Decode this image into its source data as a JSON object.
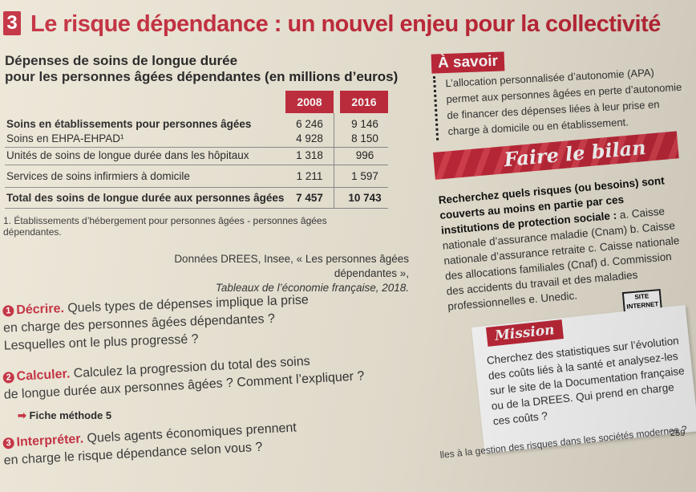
{
  "header": {
    "number": "3",
    "title": "Le risque dépendance : un nouvel enjeu pour la collectivité"
  },
  "table_title": {
    "line1": "Dépenses de soins de longue durée",
    "line2": "pour les personnes âgées dépendantes (en millions d’euros)"
  },
  "table": {
    "years": [
      "2008",
      "2016"
    ],
    "rows": [
      {
        "label": "Soins en établissements pour personnes âgées",
        "v2008": "6 246",
        "v2016": "9 146"
      },
      {
        "label": "Soins en EHPA-EHPAD¹",
        "v2008": "4 928",
        "v2016": "8 150"
      },
      {
        "label": "Unités de soins de longue durée dans les hôpitaux",
        "v2008": "1 318",
        "v2016": "996"
      },
      {
        "label": "Services de soins infirmiers à domicile",
        "v2008": "1 211",
        "v2016": "1 597"
      },
      {
        "label": "Total des soins de longue durée aux personnes âgées",
        "v2008": "7 457",
        "v2016": "10 743"
      }
    ]
  },
  "note": "1. Établissements d’hébergement pour personnes âgées - personnes âgées dépendantes.",
  "source": {
    "line1": "Données DREES, Insee, « Les personnes âgées dépendantes »,",
    "line2": "Tableaux de l’économie française, 2018."
  },
  "questions": [
    {
      "num": "1",
      "kw": "Décrire.",
      "text": "Quels types de dépenses implique la prise",
      "l2": "en charge des personnes âgées dépendantes ?",
      "l3": "Lesquelles ont le plus progressé ?"
    },
    {
      "num": "2",
      "kw": "Calculer.",
      "text": "Calculez la progression du total des soins",
      "l2": "de longue durée aux personnes âgées ? Comment l’expliquer ?"
    },
    {
      "num": "3",
      "kw": "Interpréter.",
      "text": "Quels agents économiques prennent",
      "l2": "en charge le risque dépendance selon vous ?"
    }
  ],
  "fiche": "Fiche méthode 5",
  "savoir": {
    "tag": "À savoir",
    "text": "L’allocation personnalisée d’autonomie (APA) permet aux personnes âgées en perte d’autonomie de financer des dépenses liées à leur prise en charge à domicile ou en établissement."
  },
  "bilan": {
    "tag": "Faire le bilan",
    "bold": "Recherchez quels risques (ou besoins) sont couverts au moins en partie par ces institutions de protection sociale :",
    "text": " a. Caisse nationale d’assurance maladie (Cnam) b. Caisse nationale d’assurance retraite c. Caisse nationale des allocations familiales (Cnaf) d. Commission des accidents du travail et des maladies professionnelles e. Unedic."
  },
  "site": {
    "l1": "SITE",
    "l2": "INTERNET"
  },
  "mission": {
    "tag": "Mission",
    "text": "Cherchez des statistiques sur l’évolution des coûts liés à la santé et analysez-les sur le site de la Documentation française ou de la DREES. Qui prend en charge ces coûts ?"
  },
  "page_number": "259",
  "footer": "lles à la gestion des risques dans les sociétés modernes ?"
}
